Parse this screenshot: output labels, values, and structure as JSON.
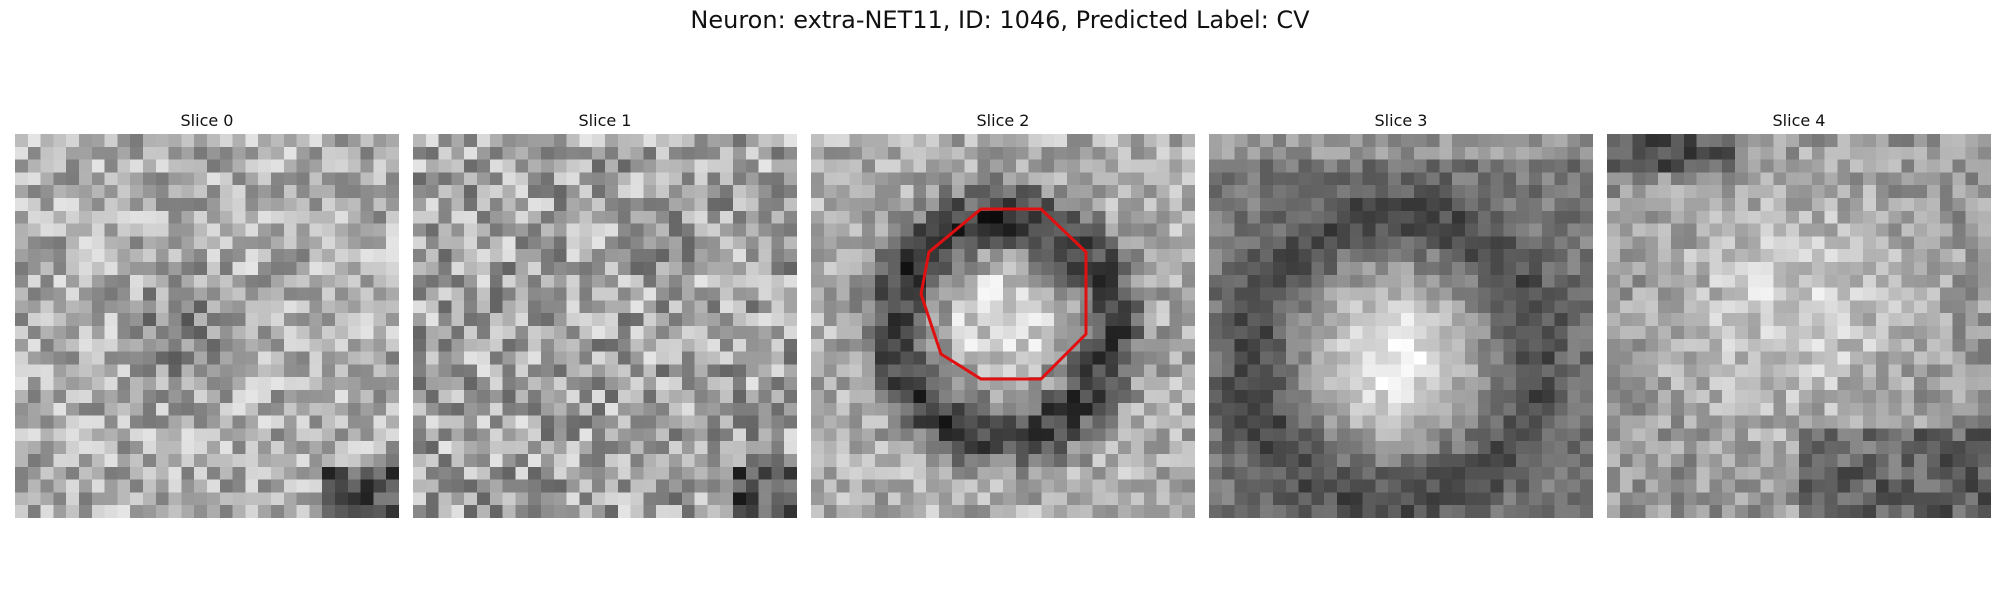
{
  "title": "Neuron: extra-NET11, ID: 1046, Predicted Label: CV",
  "panels": [
    {
      "label": "Slice 0",
      "pattern": "noise_light",
      "contour": false
    },
    {
      "label": "Slice 1",
      "pattern": "noise_medium",
      "contour": false
    },
    {
      "label": "Slice 2",
      "pattern": "ring_dark",
      "contour": true
    },
    {
      "label": "Slice 3",
      "pattern": "blob_bright",
      "contour": false
    },
    {
      "label": "Slice 4",
      "pattern": "blob_soft",
      "contour": false
    }
  ],
  "contour_color": "#e01010",
  "colormap": "gray"
}
